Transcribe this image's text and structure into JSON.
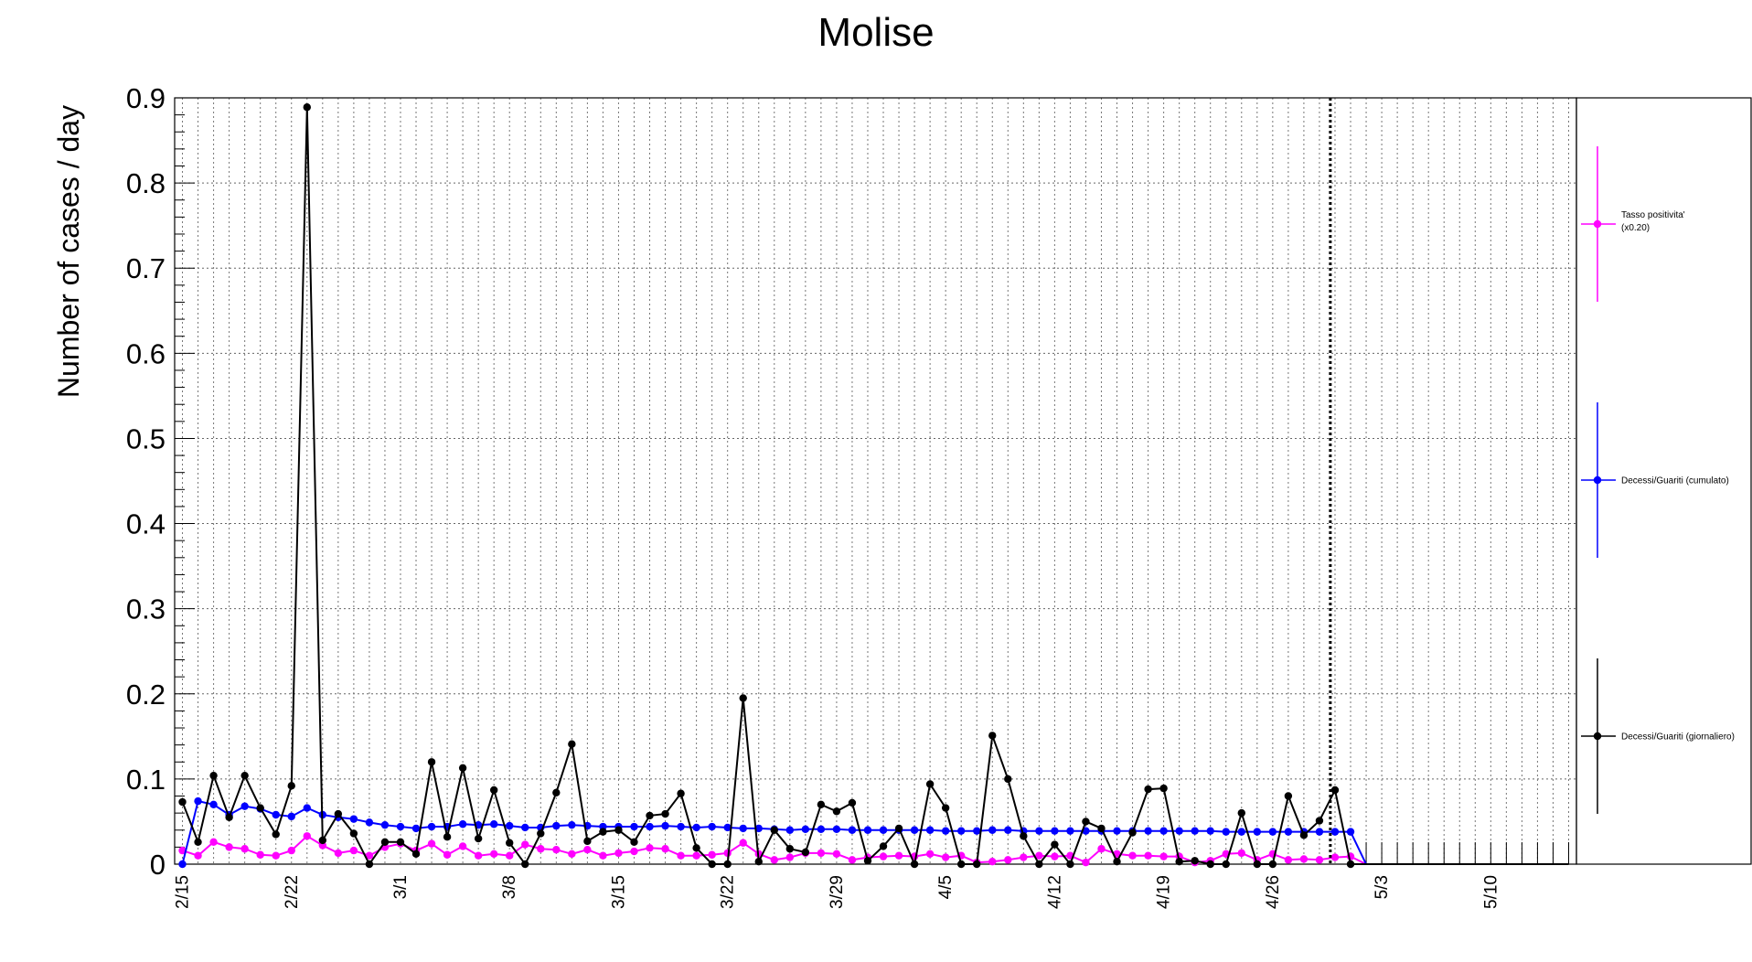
{
  "chart_data": {
    "type": "line",
    "title": "Molise",
    "xlabel": "",
    "ylabel": "Number of cases / day",
    "ylim": [
      0,
      0.9
    ],
    "yticks": [
      "0",
      "0.1",
      "0.2",
      "0.3",
      "0.4",
      "0.5",
      "0.6",
      "0.7",
      "0.8",
      "0.9"
    ],
    "x_tick_labels": [
      "2/15",
      "2/22",
      "3/1",
      "3/8",
      "3/15",
      "3/22",
      "3/29",
      "4/5",
      "4/12",
      "4/19",
      "4/26",
      "5/3",
      "5/10"
    ],
    "x_days_range": [
      -0.5,
      89.5
    ],
    "vertical_marker_day": 73.7,
    "grid": true,
    "legend_position": "right",
    "series": [
      {
        "name": "Tasso positivita' (x0.20)",
        "color": "#ff00ff",
        "values": [
          0.016,
          0.01,
          0.026,
          0.02,
          0.018,
          0.011,
          0.01,
          0.016,
          0.033,
          0.022,
          0.013,
          0.016,
          0.01,
          0.02,
          0.024,
          0.016,
          0.024,
          0.011,
          0.021,
          0.01,
          0.012,
          0.01,
          0.023,
          0.018,
          0.017,
          0.012,
          0.017,
          0.01,
          0.013,
          0.015,
          0.019,
          0.018,
          0.01,
          0.01,
          0.011,
          0.013,
          0.025,
          0.012,
          0.005,
          0.008,
          0.013,
          0.013,
          0.012,
          0.005,
          0.008,
          0.009,
          0.01,
          0.009,
          0.012,
          0.008,
          0.01,
          0.002,
          0.003,
          0.005,
          0.008,
          0.01,
          0.009,
          0.01,
          0.002,
          0.018,
          0.012,
          0.01,
          0.01,
          0.009,
          0.009,
          0.002,
          0.004,
          0.012,
          0.013,
          0.005,
          0.012,
          0.005,
          0.006,
          0.005,
          0.008,
          0.009,
          0,
          0,
          0,
          0,
          0,
          0,
          0,
          0,
          0,
          0,
          0,
          0,
          0,
          0
        ]
      },
      {
        "name": "Decessi/Guariti (cumulato)",
        "color": "#0000ff",
        "values": [
          0,
          0.074,
          0.07,
          0.058,
          0.068,
          0.065,
          0.058,
          0.056,
          0.066,
          0.058,
          0.055,
          0.053,
          0.049,
          0.046,
          0.044,
          0.042,
          0.044,
          0.044,
          0.047,
          0.046,
          0.047,
          0.045,
          0.043,
          0.043,
          0.045,
          0.046,
          0.045,
          0.044,
          0.044,
          0.044,
          0.044,
          0.045,
          0.044,
          0.043,
          0.044,
          0.043,
          0.042,
          0.042,
          0.041,
          0.04,
          0.041,
          0.041,
          0.041,
          0.04,
          0.04,
          0.04,
          0.04,
          0.04,
          0.04,
          0.039,
          0.039,
          0.039,
          0.04,
          0.04,
          0.039,
          0.039,
          0.039,
          0.039,
          0.039,
          0.039,
          0.039,
          0.039,
          0.039,
          0.039,
          0.039,
          0.039,
          0.039,
          0.038,
          0.038,
          0.038,
          0.038,
          0.038,
          0.038,
          0.038,
          0.038,
          0.038,
          0,
          0,
          0,
          0,
          0,
          0,
          0,
          0,
          0,
          0,
          0,
          0,
          0,
          0
        ]
      },
      {
        "name": "Decessi/Guariti (giornaliero)",
        "color": "#000000",
        "values": [
          0.073,
          0.026,
          0.104,
          0.055,
          0.104,
          0.066,
          0.035,
          0.092,
          0.889,
          0.028,
          0.059,
          0.036,
          0,
          0.026,
          0.026,
          0.012,
          0.12,
          0.032,
          0.113,
          0.03,
          0.087,
          0.025,
          0,
          0.036,
          0.084,
          0.141,
          0.027,
          0.038,
          0.04,
          0.026,
          0.057,
          0.059,
          0.083,
          0.019,
          0,
          0,
          0.195,
          0.003,
          0.04,
          0.018,
          0.014,
          0.07,
          0.062,
          0.072,
          0.004,
          0.021,
          0.042,
          0,
          0.094,
          0.066,
          0,
          0,
          0.151,
          0.1,
          0.033,
          0,
          0.023,
          0,
          0.05,
          0.042,
          0.003,
          0.037,
          0.088,
          0.089,
          0.003,
          0.004,
          0,
          0,
          0.06,
          0,
          0,
          0.08,
          0.034,
          0.051,
          0.087,
          0,
          0,
          0,
          0,
          0,
          0,
          0,
          0,
          0,
          0,
          0,
          0,
          0,
          0,
          0
        ]
      }
    ],
    "legend": [
      {
        "line1": "Tasso positivita'",
        "line2": "(x0.20)",
        "color": "#ff00ff"
      },
      {
        "line1": "Decessi/Guariti (cumulato)",
        "line2": "",
        "color": "#0000ff"
      },
      {
        "line1": "Decessi/Guariti (giornaliero)",
        "line2": "",
        "color": "#000000"
      }
    ]
  }
}
